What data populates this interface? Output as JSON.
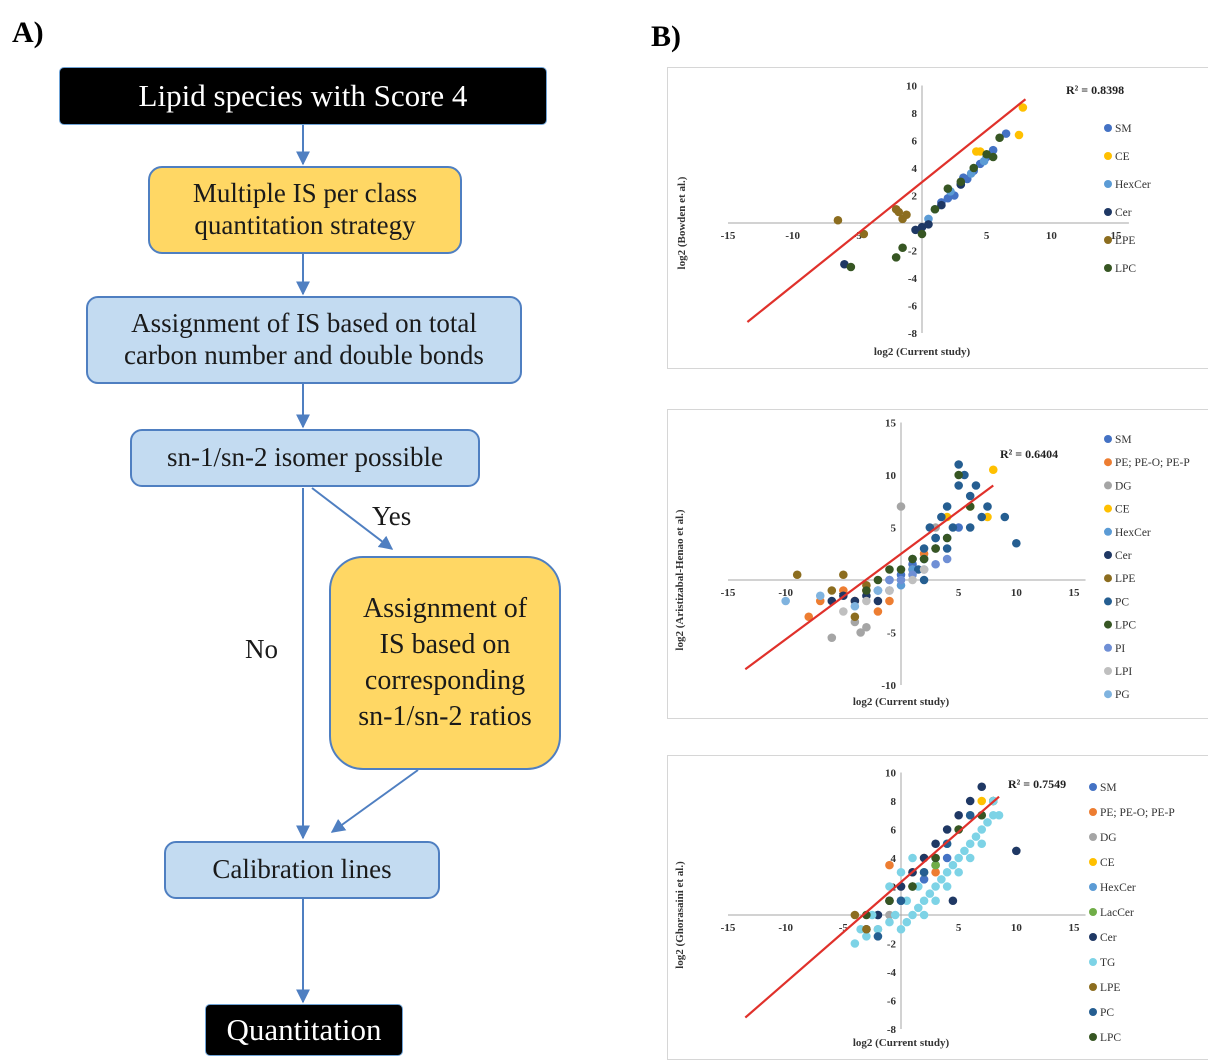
{
  "panels": {
    "a_label": "A)",
    "b_label": "B)"
  },
  "flowchart": {
    "start": "Lipid species with Score 4",
    "step1": "Multiple IS per class quantitation strategy",
    "step2": "Assignment of IS based on total carbon number and double bonds",
    "decision": "sn-1/sn-2 isomer possible",
    "yes_label": "Yes",
    "no_label": "No",
    "yes_branch": "Assignment of IS based on corresponding sn-1/sn-2 ratios",
    "step3": "Calibration lines",
    "end": "Quantitation"
  },
  "colors": {
    "SM": "#4472c4",
    "CE": "#ffc000",
    "HexCer": "#5b9bd5",
    "Cer": "#1f3864",
    "LPE": "#8c6d1f",
    "LPC": "#375623",
    "PE; PE-O; PE-P": "#ed7d31",
    "DG": "#a5a5a5",
    "PC": "#255e91",
    "PI": "#6f8fd5",
    "LPI": "#bfbfbf",
    "PG": "#7fb3df",
    "LacCer": "#70ad47",
    "TG": "#7dd3e6",
    "trendline": "#e0312b"
  },
  "chart_data": [
    {
      "type": "scatter",
      "xlabel": "log2 (Current study)",
      "ylabel": "log2 (Bowden et al.)",
      "r2_label": "R² = 0.8398",
      "xlim": [
        -15,
        16
      ],
      "ylim": [
        -8,
        10
      ],
      "xticks": [
        -15,
        -10,
        -5,
        5,
        10,
        15
      ],
      "yticks": [
        -8,
        -6,
        -4,
        -2,
        2,
        4,
        6,
        8,
        10
      ],
      "trendline": {
        "x": [
          -13.5,
          8
        ],
        "y": [
          -7.2,
          9
        ]
      },
      "legend": [
        "SM",
        "CE",
        "HexCer",
        "Cer",
        "LPE",
        "LPC"
      ],
      "series": [
        {
          "name": "SM",
          "x": [
            1.5,
            2.5,
            3,
            3.5,
            4,
            4.5,
            5,
            5.5,
            6.5,
            2,
            3.2
          ],
          "y": [
            1.5,
            2,
            2.8,
            3.2,
            3.8,
            4.3,
            4.8,
            5.3,
            6.5,
            1.8,
            3.3
          ]
        },
        {
          "name": "CE",
          "x": [
            7.8,
            7.5,
            4.2,
            4.5
          ],
          "y": [
            8.4,
            6.4,
            5.2,
            5.2
          ]
        },
        {
          "name": "HexCer",
          "x": [
            0.5,
            1,
            2.2,
            3.8,
            4.8
          ],
          "y": [
            0.3,
            1,
            2.3,
            3.6,
            4.5
          ]
        },
        {
          "name": "Cer",
          "x": [
            -6,
            -0.5,
            0,
            0.5,
            1.5,
            3
          ],
          "y": [
            -3,
            -0.5,
            -0.3,
            -0.1,
            1.3,
            2.8
          ]
        },
        {
          "name": "LPE",
          "x": [
            -6.5,
            -2,
            -1.5,
            -1.2,
            -1.8,
            -4.5
          ],
          "y": [
            0.2,
            1,
            0.3,
            0.6,
            0.8,
            -0.8
          ]
        },
        {
          "name": "LPC",
          "x": [
            -5.5,
            -2,
            -1.5,
            0,
            1,
            2,
            3,
            4,
            5,
            6,
            5.5
          ],
          "y": [
            -3.2,
            -2.5,
            -1.8,
            -0.8,
            1,
            2.5,
            3,
            4,
            5,
            6.2,
            4.8
          ]
        }
      ]
    },
    {
      "type": "scatter",
      "xlabel": "log2 (Current study)",
      "ylabel": "log2 (Aristizabal-Henao et al.)",
      "r2_label": "R² = 0.6404",
      "xlim": [
        -15,
        16
      ],
      "ylim": [
        -10,
        15
      ],
      "xticks": [
        -15,
        -10,
        -5,
        5,
        10,
        15
      ],
      "yticks": [
        -10,
        -5,
        5,
        10,
        15
      ],
      "trendline": {
        "x": [
          -13.5,
          8
        ],
        "y": [
          -8.5,
          9
        ]
      },
      "legend": [
        "SM",
        "PE; PE-O; PE-P",
        "DG",
        "CE",
        "HexCer",
        "Cer",
        "LPE",
        "PC",
        "LPC",
        "PI",
        "LPI",
        "PG"
      ],
      "series": [
        {
          "name": "SM",
          "x": [
            -1,
            0,
            1,
            2,
            3,
            4,
            5
          ],
          "y": [
            -1,
            0.5,
            1.5,
            2,
            3,
            4,
            5
          ]
        },
        {
          "name": "PE; PE-O; PE-P",
          "x": [
            -8,
            -7,
            -5,
            -4,
            -3,
            -2,
            -1,
            1,
            2,
            3
          ],
          "y": [
            -3.5,
            -2,
            -1,
            -2,
            -1,
            -3,
            -2,
            1,
            2.5,
            3
          ]
        },
        {
          "name": "DG",
          "x": [
            -6,
            -4,
            -3.5,
            -3,
            0,
            2,
            3
          ],
          "y": [
            -5.5,
            -4,
            -5,
            -4.5,
            7,
            2,
            5
          ]
        },
        {
          "name": "CE",
          "x": [
            8,
            7.5,
            6,
            4
          ],
          "y": [
            10.5,
            6,
            7,
            6
          ]
        },
        {
          "name": "HexCer",
          "x": [
            -2,
            -1,
            0,
            1,
            2,
            3
          ],
          "y": [
            -1,
            0,
            -0.5,
            1,
            2,
            3
          ]
        },
        {
          "name": "Cer",
          "x": [
            -6,
            -5,
            -4,
            -3,
            -2
          ],
          "y": [
            -2,
            -1.5,
            -2,
            -1.5,
            -2
          ]
        },
        {
          "name": "LPE",
          "x": [
            -9,
            -6,
            -5,
            -4,
            -3
          ],
          "y": [
            0.5,
            -1,
            0.5,
            -3.5,
            -0.5
          ]
        },
        {
          "name": "PC",
          "x": [
            1,
            2,
            3,
            3.5,
            4,
            4.5,
            5,
            5.5,
            6,
            6.5,
            7,
            7.5,
            9,
            10,
            3,
            2.5,
            5,
            6,
            4,
            1.5,
            2
          ],
          "y": [
            2,
            3,
            4,
            6,
            7,
            5,
            11,
            10,
            8,
            9,
            6,
            7,
            6,
            3.5,
            4,
            5,
            9,
            5,
            3,
            1,
            0
          ]
        },
        {
          "name": "LPC",
          "x": [
            -3,
            -2,
            -1,
            0,
            1,
            2,
            3,
            4,
            5,
            6
          ],
          "y": [
            -1,
            0,
            1,
            1,
            2,
            2,
            3,
            4,
            10,
            7
          ]
        },
        {
          "name": "PI",
          "x": [
            -2,
            -1,
            0,
            1,
            2,
            3,
            4
          ],
          "y": [
            -1,
            0,
            0,
            0.5,
            1,
            1.5,
            2
          ]
        },
        {
          "name": "LPI",
          "x": [
            -5,
            -3,
            -1,
            1,
            2
          ],
          "y": [
            -3,
            -2,
            -1,
            0,
            1
          ]
        },
        {
          "name": "PG",
          "x": [
            -10,
            -7,
            -4,
            -2
          ],
          "y": [
            -2,
            -1.5,
            -2.5,
            -1
          ]
        }
      ]
    },
    {
      "type": "scatter",
      "xlabel": "log2 (Current study)",
      "ylabel": "log2 (Ghorasaini et al.)",
      "r2_label": "R² = 0.7549",
      "xlim": [
        -15,
        16
      ],
      "ylim": [
        -8,
        10
      ],
      "xticks": [
        -15,
        -10,
        -5,
        5,
        10,
        15
      ],
      "yticks": [
        -8,
        -6,
        -4,
        -2,
        2,
        4,
        6,
        8,
        10
      ],
      "trendline": {
        "x": [
          -13.5,
          8.5
        ],
        "y": [
          -7.2,
          8.3
        ]
      },
      "legend": [
        "SM",
        "PE; PE-O; PE-P",
        "DG",
        "CE",
        "HexCer",
        "LacCer",
        "Cer",
        "TG",
        "LPE",
        "PC",
        "LPC"
      ],
      "series": [
        {
          "name": "SM",
          "x": [
            0,
            1,
            2,
            3,
            4
          ],
          "y": [
            1,
            2,
            2.5,
            3.5,
            4
          ]
        },
        {
          "name": "PE; PE-O; PE-P",
          "x": [
            -1,
            0,
            1,
            2,
            3
          ],
          "y": [
            3.5,
            2,
            3,
            4,
            3
          ]
        },
        {
          "name": "DG",
          "x": [
            -2,
            -1,
            0,
            1
          ],
          "y": [
            -1,
            0,
            1,
            2
          ]
        },
        {
          "name": "CE",
          "x": [
            5,
            6,
            7,
            8
          ],
          "y": [
            6,
            7,
            8,
            8
          ]
        },
        {
          "name": "HexCer",
          "x": [
            -3,
            -2,
            -1,
            0
          ],
          "y": [
            -1,
            0,
            1,
            2
          ]
        },
        {
          "name": "LacCer",
          "x": [
            1,
            2,
            3
          ],
          "y": [
            2,
            3,
            3.5
          ]
        },
        {
          "name": "Cer",
          "x": [
            -3,
            -2,
            -1,
            0,
            1,
            2,
            3,
            4,
            5,
            6,
            7,
            8,
            10,
            4.5
          ],
          "y": [
            -1,
            0,
            1,
            2,
            3,
            4,
            5,
            6,
            7,
            8,
            9,
            8,
            4.5,
            1
          ]
        },
        {
          "name": "TG",
          "x": [
            -4,
            -3,
            -2,
            -1,
            0,
            0.5,
            1,
            1.5,
            2,
            2.5,
            3,
            3.5,
            4,
            4.5,
            5,
            5.5,
            6,
            6.5,
            7,
            7.5,
            8,
            8.5,
            2,
            3,
            4,
            5,
            6,
            7,
            -1,
            0,
            1,
            -3.5,
            -2.5,
            -0.5,
            0.5,
            1.5,
            3,
            4,
            5,
            6,
            7,
            8
          ],
          "y": [
            -2,
            -1.5,
            -1,
            -0.5,
            -1,
            -0.5,
            0,
            0.5,
            1,
            1.5,
            2,
            2.5,
            3,
            3.5,
            4,
            4.5,
            5,
            5.5,
            6,
            6.5,
            7,
            7,
            0,
            1,
            2,
            3,
            4,
            5,
            2,
            3,
            4,
            -1,
            0,
            0,
            1,
            2,
            4,
            5,
            6,
            7,
            7,
            8
          ]
        },
        {
          "name": "LPE",
          "x": [
            -4,
            -3
          ],
          "y": [
            0,
            -1
          ]
        },
        {
          "name": "PC",
          "x": [
            -2,
            0,
            2,
            4,
            6
          ],
          "y": [
            -1.5,
            1,
            3,
            5,
            7
          ]
        },
        {
          "name": "LPC",
          "x": [
            -3,
            -1,
            1,
            3,
            5,
            7
          ],
          "y": [
            0,
            1,
            2,
            4,
            6,
            7
          ]
        }
      ]
    }
  ]
}
